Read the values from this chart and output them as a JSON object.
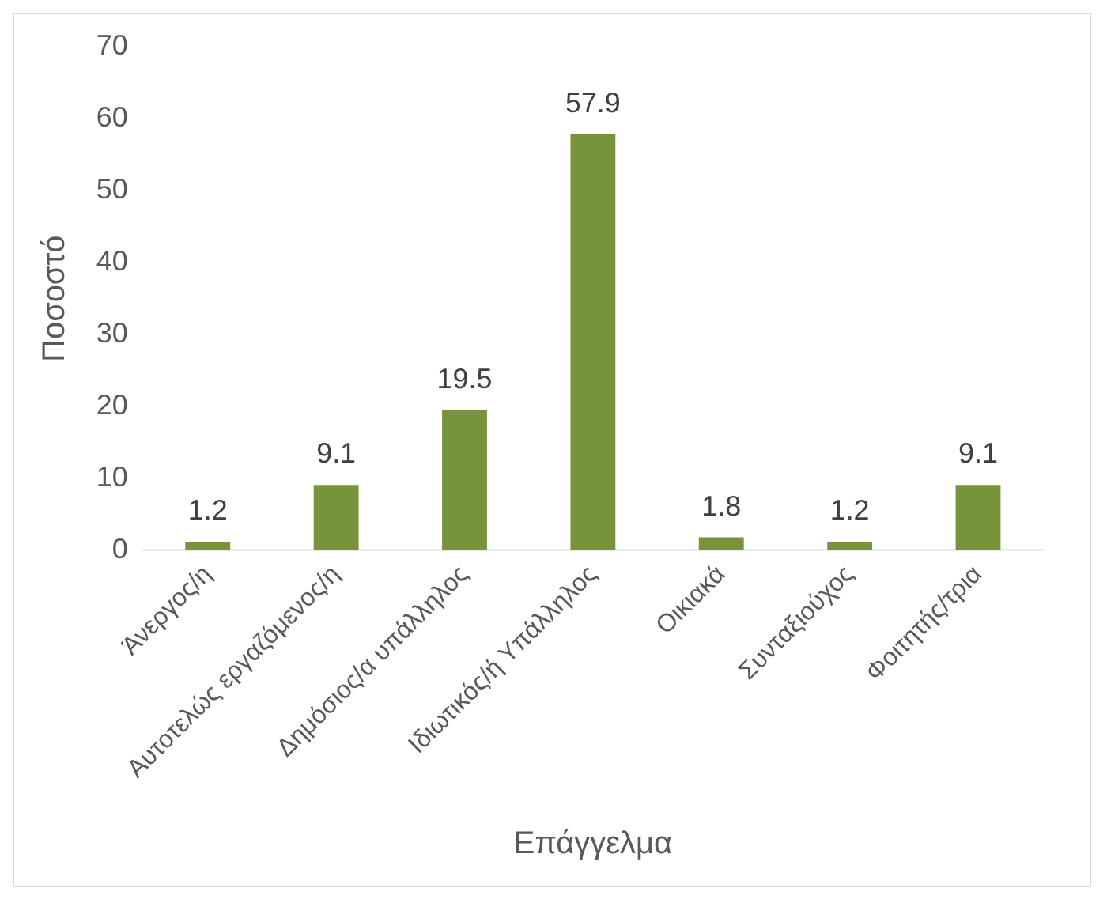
{
  "chart_data": {
    "type": "bar",
    "categories": [
      "Άνεργος/η",
      "Αυτοτελώς εργαζόμενος/η",
      "Δημόσιος/α υπάλληλος",
      "Ιδιωτικός/ή Υπάλληλος",
      "Οικιακά",
      "Συνταξιούχος",
      "Φοιτητής/τρια"
    ],
    "values": [
      1.2,
      9.1,
      19.5,
      57.9,
      1.8,
      1.2,
      9.1
    ],
    "color": "#77933c",
    "xlabel": "Επάγγελμα",
    "ylabel": "Ποσοστό",
    "ylim": [
      0,
      70
    ],
    "yticks": [
      0,
      10,
      20,
      30,
      40,
      50,
      60,
      70
    ],
    "data_labels": true,
    "grid": false,
    "legend": false
  }
}
